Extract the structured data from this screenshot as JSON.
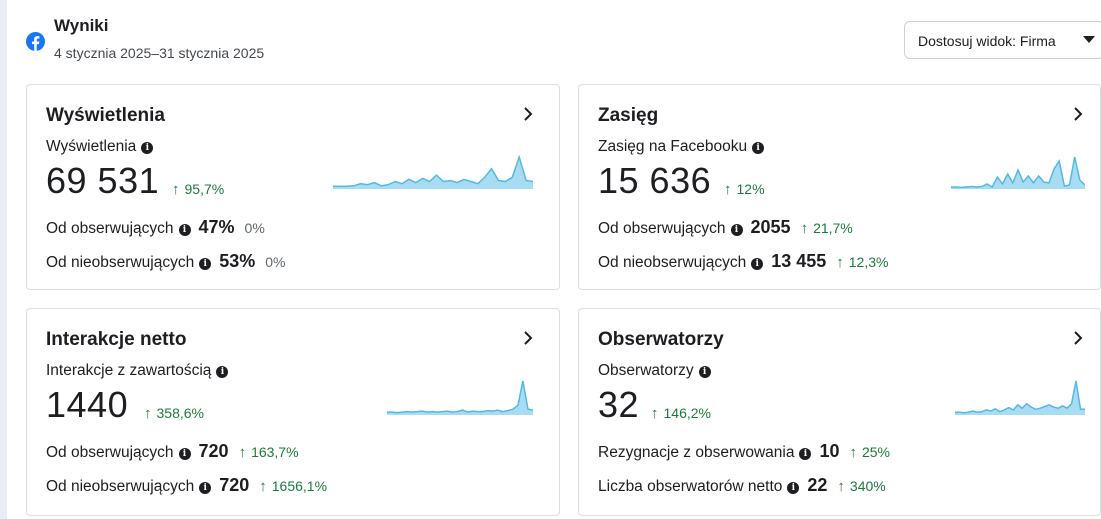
{
  "header": {
    "title": "Wyniki",
    "date_range": "4 stycznia 2025–31 stycznia 2025",
    "view_button": "Dostosuj widok: Firma"
  },
  "cards": [
    {
      "title": "Wyświetlenia",
      "metric_label": "Wyświetlenia",
      "value": "69 531",
      "change": "95,7%",
      "rows": [
        {
          "label": "Od obserwujących",
          "value": "47%",
          "change": "0%",
          "trend": "flat"
        },
        {
          "label": "Od nieobserwujących",
          "value": "53%",
          "change": "0%",
          "trend": "flat"
        }
      ]
    },
    {
      "title": "Zasięg",
      "metric_label": "Zasięg na Facebooku",
      "value": "15 636",
      "change": "12%",
      "rows": [
        {
          "label": "Od obserwujących",
          "value": "2055",
          "change": "21,7%",
          "trend": "up"
        },
        {
          "label": "Od nieobserwujących",
          "value": "13 455",
          "change": "12,3%",
          "trend": "up"
        }
      ]
    },
    {
      "title": "Interakcje netto",
      "metric_label": "Interakcje z zawartością",
      "value": "1440",
      "change": "358,6%",
      "rows": [
        {
          "label": "Od obserwujących",
          "value": "720",
          "change": "163,7%",
          "trend": "up"
        },
        {
          "label": "Od nieobserwujących",
          "value": "720",
          "change": "1656,1%",
          "trend": "up"
        }
      ]
    },
    {
      "title": "Obserwatorzy",
      "metric_label": "Obserwatorzy",
      "value": "32",
      "change": "146,2%",
      "rows": [
        {
          "label": "Rezygnacje z obserwowania",
          "value": "10",
          "change": "25%",
          "trend": "up"
        },
        {
          "label": "Liczba obserwatorów netto",
          "value": "22",
          "change": "340%",
          "trend": "up"
        }
      ]
    }
  ],
  "colors": {
    "brand": "#1877f2",
    "positive": "#1e7a3c",
    "sparkline_fill": "#a8dcf3",
    "sparkline_stroke": "#54b8e4"
  },
  "sparklines": [
    [
      5,
      5,
      5,
      6,
      10,
      8,
      12,
      6,
      8,
      14,
      10,
      18,
      12,
      20,
      14,
      26,
      14,
      16,
      12,
      18,
      14,
      10,
      22,
      38,
      16,
      14,
      22,
      60,
      16,
      14
    ],
    [
      4,
      4,
      3,
      4,
      5,
      4,
      5,
      10,
      4,
      24,
      10,
      30,
      12,
      38,
      14,
      26,
      12,
      26,
      14,
      12,
      40,
      56,
      6,
      8,
      64,
      18,
      8
    ],
    [
      6,
      6,
      5,
      6,
      7,
      6,
      7,
      8,
      6,
      7,
      6,
      7,
      8,
      6,
      7,
      10,
      6,
      8,
      7,
      7,
      9,
      8,
      10,
      7,
      9,
      12,
      20,
      70,
      12,
      10
    ],
    [
      5,
      5,
      4,
      5,
      7,
      5,
      6,
      9,
      7,
      11,
      6,
      9,
      13,
      9,
      18,
      12,
      20,
      14,
      10,
      12,
      15,
      18,
      14,
      12,
      16,
      12,
      20,
      60,
      10,
      10
    ]
  ]
}
